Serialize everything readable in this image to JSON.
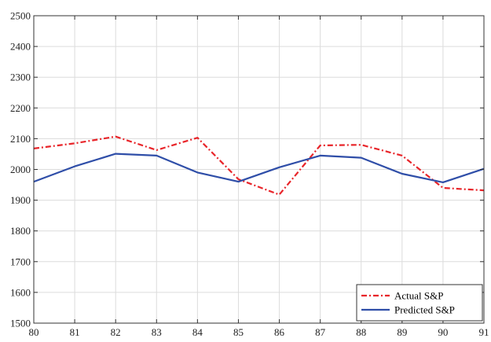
{
  "chart_data": {
    "type": "line",
    "title": "",
    "xlabel": "",
    "ylabel": "",
    "x": [
      80,
      81,
      82,
      83,
      84,
      85,
      86,
      87,
      88,
      89,
      90,
      91
    ],
    "xlim": [
      80,
      91
    ],
    "ylim": [
      1500,
      2500
    ],
    "xticks": [
      "80",
      "81",
      "82",
      "83",
      "84",
      "85",
      "86",
      "87",
      "88",
      "89",
      "90",
      "91"
    ],
    "yticks": [
      "1500",
      "1600",
      "1700",
      "1800",
      "1900",
      "2000",
      "2100",
      "2200",
      "2300",
      "2400",
      "2500"
    ],
    "grid": true,
    "legend_position": "bottom-right",
    "series": [
      {
        "name": "Actual S&P",
        "color": "#e8252a",
        "line_style": "dash-dot",
        "values": [
          2068,
          2085,
          2107,
          2063,
          2103,
          1968,
          1918,
          2078,
          2080,
          2045,
          1940,
          1932
        ]
      },
      {
        "name": "Predicted S&P",
        "color": "#2f4ea8",
        "line_style": "solid",
        "values": [
          1960,
          2010,
          2051,
          2045,
          1990,
          1960,
          2007,
          2045,
          2038,
          1986,
          1958,
          2002
        ]
      }
    ]
  }
}
